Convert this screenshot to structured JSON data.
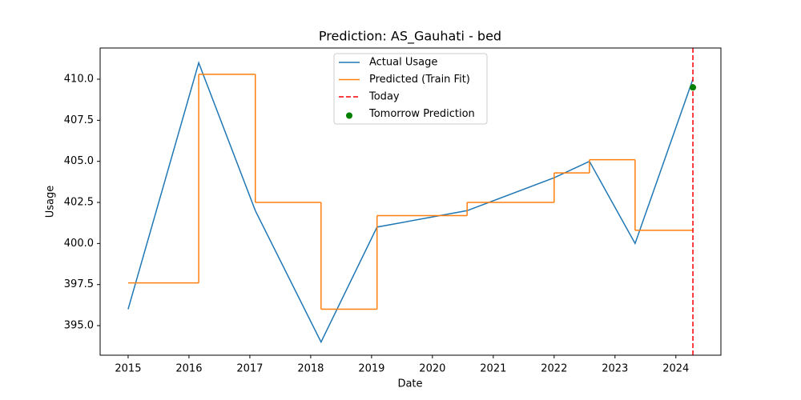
{
  "chart_data": {
    "type": "line",
    "title": "Prediction: AS_Gauhati - bed",
    "x_label": "Date",
    "y_label": "Usage",
    "x": [
      2015.0,
      2016.16,
      2017.09,
      2018.17,
      2019.09,
      2020.57,
      2022.0,
      2022.58,
      2023.33,
      2024.28
    ],
    "series": [
      {
        "name": "Actual Usage",
        "color": "#1f77b4",
        "values": [
          396,
          411,
          402,
          394,
          401,
          402,
          404,
          405,
          400,
          410
        ]
      },
      {
        "name": "Predicted (Train Fit)",
        "color": "#ff7f0e",
        "step": "post",
        "values": [
          397.6,
          410.3,
          402.5,
          396.0,
          401.7,
          402.5,
          404.3,
          405.1,
          400.8,
          400.8
        ]
      }
    ],
    "today": {
      "name": "Today",
      "color": "#ff0000",
      "x": 2024.28
    },
    "tomorrow": {
      "name": "Tomorrow Prediction",
      "color": "#008000",
      "x": 2024.28,
      "value": 409.5
    },
    "xlim": [
      2014.54,
      2024.74
    ],
    "xticks": [
      2015,
      2016,
      2017,
      2018,
      2019,
      2020,
      2021,
      2022,
      2023,
      2024
    ],
    "ylim": [
      393.2,
      411.9
    ],
    "yticks": [
      {
        "value": 395,
        "label": "395.0"
      },
      {
        "value": 397.5,
        "label": "397.5"
      },
      {
        "value": 400,
        "label": "400.0"
      },
      {
        "value": 402.5,
        "label": "402.5"
      },
      {
        "value": 405,
        "label": "405.0"
      },
      {
        "value": 407.5,
        "label": "407.5"
      },
      {
        "value": 410,
        "label": "410.0"
      }
    ],
    "legend": "upper center"
  }
}
